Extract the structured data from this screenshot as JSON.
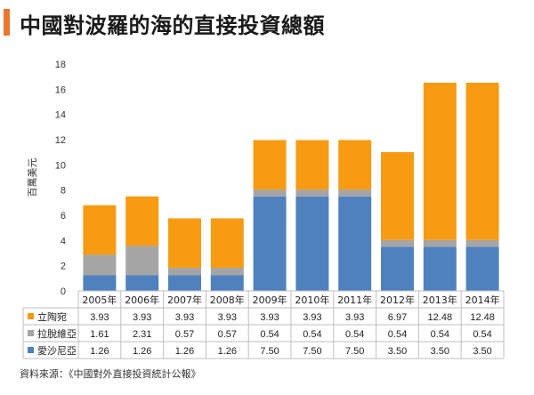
{
  "title": "中國對波羅的海的直接投資總額",
  "source": "資料來源：《中國對外直接投資統計公報》",
  "chart_data": {
    "type": "bar",
    "stacked": true,
    "categories": [
      "2005年",
      "2006年",
      "2007年",
      "2008年",
      "2009年",
      "2010年",
      "2011年",
      "2012年",
      "2013年",
      "2014年"
    ],
    "series": [
      {
        "name": "愛沙尼亞",
        "color": "#4f81bd",
        "values": [
          1.26,
          1.26,
          1.26,
          1.26,
          7.5,
          7.5,
          7.5,
          3.5,
          3.5,
          3.5
        ]
      },
      {
        "name": "拉脫維亞",
        "color": "#a5a5a5",
        "values": [
          1.61,
          2.31,
          0.57,
          0.57,
          0.54,
          0.54,
          0.54,
          0.54,
          0.54,
          0.54
        ]
      },
      {
        "name": "立陶宛",
        "color": "#f79b13",
        "values": [
          3.93,
          3.93,
          3.93,
          3.93,
          3.93,
          3.93,
          3.93,
          6.97,
          12.48,
          12.48
        ]
      }
    ],
    "table_labels": [
      [
        "3.93",
        "3.93",
        "3.93",
        "3.93",
        "3.93",
        "3.93",
        "3.93",
        "6.97",
        "12.48",
        "12.48"
      ],
      [
        "1.61",
        "2.31",
        "0.57",
        "0.57",
        "0.54",
        "0.54",
        "0.54",
        "0.54",
        "0.54",
        "0.54"
      ],
      [
        "1.26",
        "1.26",
        "1.26",
        "1.26",
        "7.50",
        "7.50",
        "7.50",
        "3.50",
        "3.50",
        "3.50"
      ]
    ],
    "table_series_order": [
      "立陶宛",
      "拉脫維亞",
      "愛沙尼亞"
    ],
    "ylabel": "百萬美元",
    "ylim": [
      0,
      18
    ],
    "yticks": [
      0,
      2,
      4,
      6,
      8,
      10,
      12,
      14,
      16,
      18
    ],
    "grid": false,
    "legend": "data-table"
  }
}
